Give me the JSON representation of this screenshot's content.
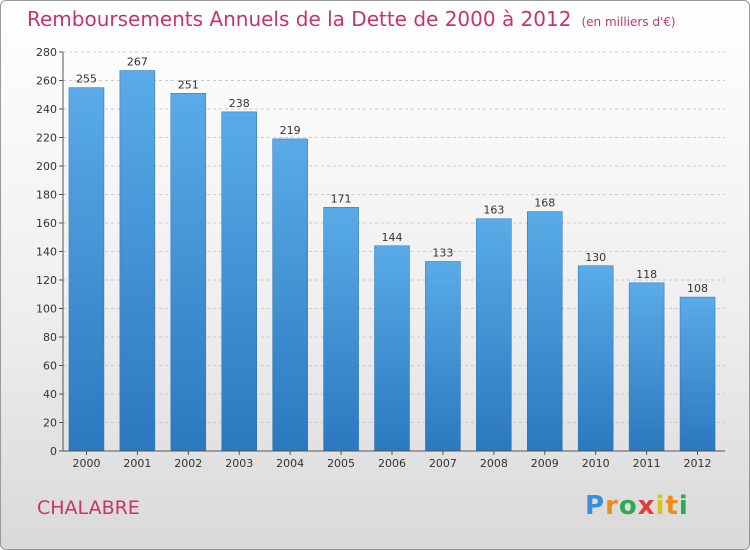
{
  "chart_data": {
    "type": "bar",
    "title": "Remboursements Annuels de la Dette de 2000 à 2012",
    "unit_note": "(en milliers d'€)",
    "categories": [
      "2000",
      "2001",
      "2002",
      "2003",
      "2004",
      "2005",
      "2006",
      "2007",
      "2008",
      "2009",
      "2010",
      "2011",
      "2012"
    ],
    "values": [
      255,
      267,
      251,
      238,
      219,
      171,
      144,
      133,
      163,
      168,
      130,
      118,
      108
    ],
    "ylim": [
      0,
      280
    ],
    "yticks": [
      0,
      20,
      40,
      60,
      80,
      100,
      120,
      140,
      160,
      180,
      200,
      220,
      240,
      260,
      280
    ],
    "grid": true,
    "bar_color": "#3d8fd6"
  },
  "commune": "CHALABRE",
  "brand": "Proxiti"
}
